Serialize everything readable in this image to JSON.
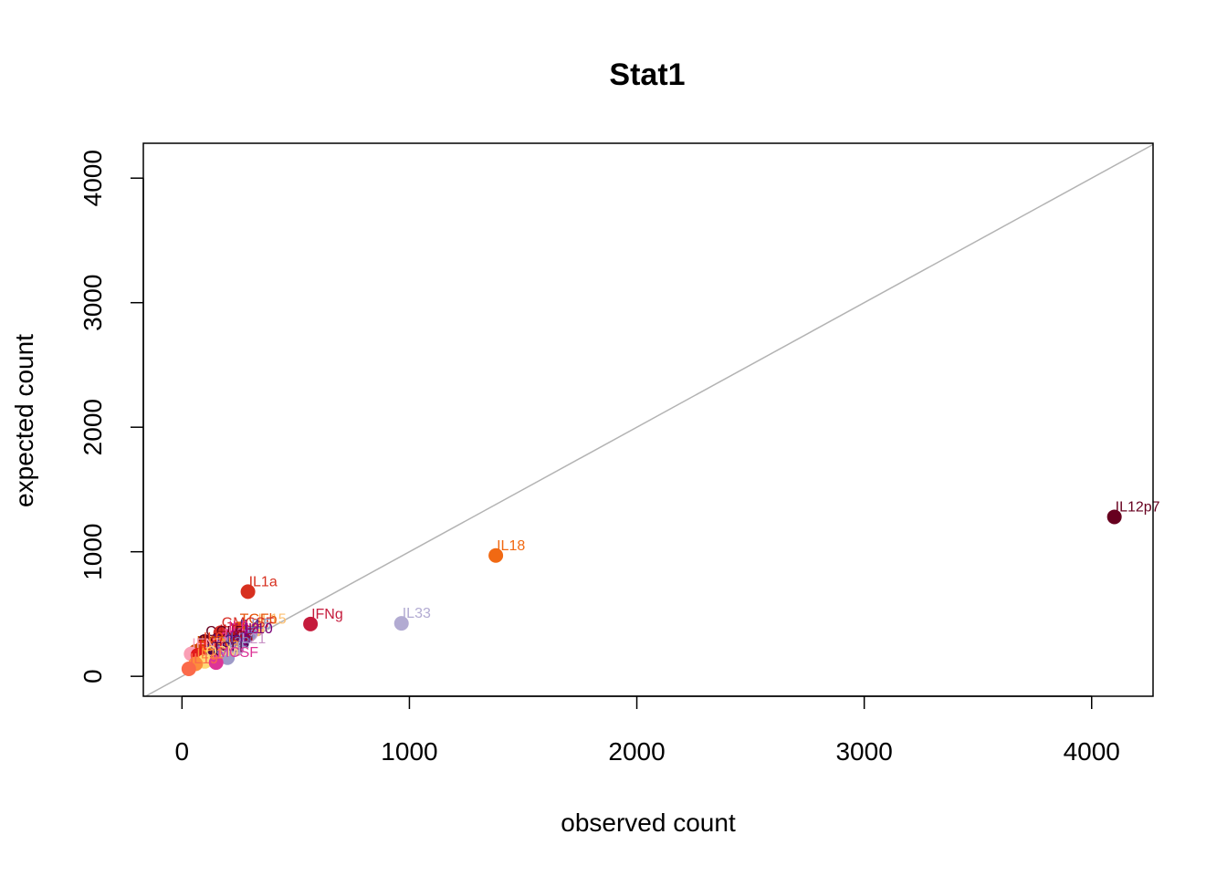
{
  "chart_data": {
    "type": "scatter",
    "title": "Stat1",
    "xlabel": "observed count",
    "ylabel": "expected count",
    "xlim": [
      -170,
      4270
    ],
    "ylim": [
      -160,
      4280
    ],
    "x_ticks": [
      0,
      1000,
      2000,
      3000,
      4000
    ],
    "y_ticks": [
      0,
      1000,
      2000,
      3000,
      4000
    ],
    "grid": false,
    "reference_line": {
      "type": "identity",
      "color": "#b3b3b3"
    },
    "points": [
      {
        "label": "IL12p7",
        "x": 4100,
        "y": 1280,
        "color": "#67001f"
      },
      {
        "label": "IL18",
        "x": 1380,
        "y": 970,
        "color": "#f16913"
      },
      {
        "label": "IL33",
        "x": 965,
        "y": 425,
        "color": "#b2abd2"
      },
      {
        "label": "IFNg",
        "x": 565,
        "y": 420,
        "color": "#c51b3c"
      },
      {
        "label": "IL1a",
        "x": 290,
        "y": 680,
        "color": "#d7301f"
      },
      {
        "label": "IL15",
        "x": 330,
        "y": 380,
        "color": "#fdbf6f"
      },
      {
        "label": "TGFb",
        "x": 250,
        "y": 380,
        "color": "#e6550d"
      },
      {
        "label": "GMCSF",
        "x": 170,
        "y": 350,
        "color": "#d73027"
      },
      {
        "label": "IL5",
        "x": 300,
        "y": 340,
        "color": "#8c96c6"
      },
      {
        "label": "IL4",
        "x": 250,
        "y": 330,
        "color": "#54278f"
      },
      {
        "label": "IL6",
        "x": 200,
        "y": 320,
        "color": "#e7298a"
      },
      {
        "label": "IL10",
        "x": 270,
        "y": 300,
        "color": "#7a0177"
      },
      {
        "label": "IL13",
        "x": 210,
        "y": 300,
        "color": "#ae017e"
      },
      {
        "label": "IL2",
        "x": 160,
        "y": 290,
        "color": "#cb181d"
      },
      {
        "label": "CCL5",
        "x": 100,
        "y": 280,
        "color": "#67001f"
      },
      {
        "label": "IL3",
        "x": 180,
        "y": 260,
        "color": "#f768a1"
      },
      {
        "label": "IL7",
        "x": 230,
        "y": 260,
        "color": "#980043"
      },
      {
        "label": "TNFa",
        "x": 150,
        "y": 240,
        "color": "#a50f15"
      },
      {
        "label": "IL17",
        "x": 190,
        "y": 230,
        "color": "#6a51a3"
      },
      {
        "label": "IL21",
        "x": 240,
        "y": 220,
        "color": "#c994c7"
      },
      {
        "label": "IL9",
        "x": 90,
        "y": 230,
        "color": "#fc4e2a"
      },
      {
        "label": "IL22",
        "x": 130,
        "y": 210,
        "color": "#4a1486"
      },
      {
        "label": "IL27",
        "x": 60,
        "y": 200,
        "color": "#cc4c02"
      },
      {
        "label": "IL23",
        "x": 170,
        "y": 190,
        "color": "#807dba"
      },
      {
        "label": "IFNa",
        "x": 110,
        "y": 180,
        "color": "#fe9929"
      },
      {
        "label": "IFNb",
        "x": 40,
        "y": 180,
        "color": "#fa9fb5"
      },
      {
        "label": "IL1b",
        "x": 70,
        "y": 170,
        "color": "#e31a1c"
      },
      {
        "label": "TSLP",
        "x": 130,
        "y": 150,
        "color": "#4d004b"
      },
      {
        "label": "LIF",
        "x": 200,
        "y": 150,
        "color": "#9e9ac8"
      },
      {
        "label": "OSM",
        "x": 100,
        "y": 120,
        "color": "#fed976"
      },
      {
        "label": "MCSF",
        "x": 150,
        "y": 110,
        "color": "#dd3497"
      },
      {
        "label": "IL11",
        "x": 60,
        "y": 100,
        "color": "#fd8d3c"
      },
      {
        "label": "IL19",
        "x": 30,
        "y": 60,
        "color": "#fb6a4a"
      }
    ]
  }
}
